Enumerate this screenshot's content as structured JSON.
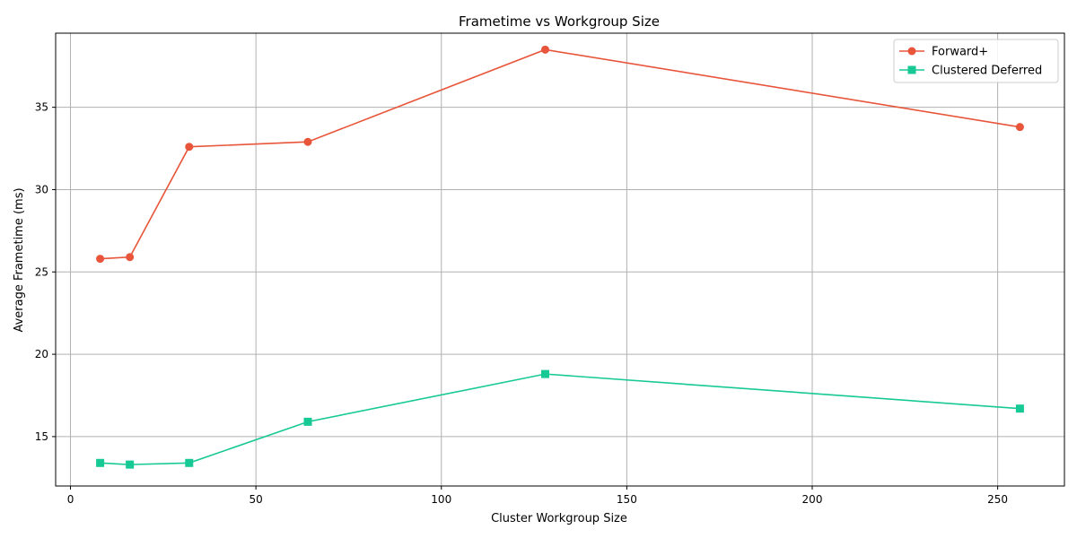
{
  "chart_data": {
    "type": "line",
    "title": "Frametime vs Workgroup Size",
    "xlabel": "Cluster Workgroup Size",
    "ylabel": "Average Frametime (ms)",
    "xlim": [
      -4,
      268
    ],
    "ylim": [
      12,
      39.5
    ],
    "xticks": [
      0,
      50,
      100,
      150,
      200,
      250
    ],
    "yticks": [
      15,
      20,
      25,
      30,
      35
    ],
    "grid": true,
    "legend": "top-right",
    "x": [
      8,
      16,
      32,
      64,
      128,
      256
    ],
    "series": [
      {
        "name": "Forward+",
        "color": "#e8553a",
        "marker": "circle",
        "values": [
          25.8,
          25.9,
          32.6,
          32.9,
          38.5,
          33.8
        ]
      },
      {
        "name": "Clustered Deferred",
        "color": "#17c995",
        "marker": "square",
        "values": [
          13.4,
          13.3,
          13.4,
          15.9,
          18.8,
          16.7
        ]
      }
    ]
  }
}
